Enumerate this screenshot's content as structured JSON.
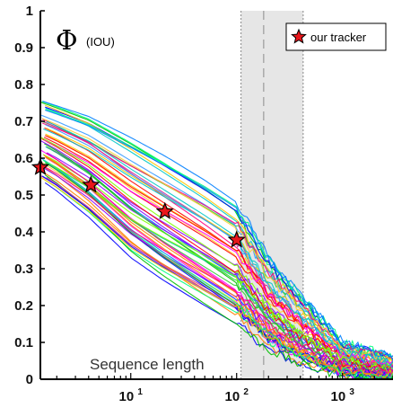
{
  "chart_data": {
    "type": "line",
    "title": "",
    "ylabel_symbol": "Φ",
    "ylabel_sub": "(IOU)",
    "xlabel": "Sequence length",
    "xscale": "log",
    "xlim": [
      1.4,
      3000
    ],
    "ylim": [
      0,
      1
    ],
    "y_ticks": [
      "0",
      "0.1",
      "0.2",
      "0.3",
      "0.4",
      "0.5",
      "0.6",
      "0.7",
      "0.8",
      "0.9",
      "1"
    ],
    "x_ticks": [
      {
        "base": "10",
        "exp": "1",
        "value": 10
      },
      {
        "base": "10",
        "exp": "2",
        "value": 100
      },
      {
        "base": "10",
        "exp": "3",
        "value": 1000
      }
    ],
    "shaded_region": [
      110,
      425
    ],
    "dashed_marker_x": 180,
    "legend": {
      "label": "our tracker",
      "marker": "red-star",
      "position": "top-right"
    },
    "highlight_series": {
      "name": "our tracker",
      "points": [
        {
          "x": 1.4,
          "y": 0.575
        },
        {
          "x": 4.2,
          "y": 0.527
        },
        {
          "x": 21,
          "y": 0.455
        },
        {
          "x": 100,
          "y": 0.378
        }
      ]
    },
    "series_band": {
      "count": 60,
      "description_free": true,
      "x_knots": [
        1.4,
        2,
        4,
        10,
        20,
        50,
        100,
        200,
        400,
        1000,
        3000
      ],
      "upper": [
        0.765,
        0.75,
        0.72,
        0.66,
        0.61,
        0.54,
        0.48,
        0.33,
        0.23,
        0.1,
        0.06
      ],
      "lower": [
        0.54,
        0.51,
        0.44,
        0.33,
        0.27,
        0.2,
        0.15,
        0.08,
        0.04,
        0.01,
        0.0
      ]
    }
  },
  "colors": {
    "star_fill": "#e8161b",
    "star_stroke": "#000000",
    "shade": "#e6e6e6",
    "curve_palette": [
      "#ff0000",
      "#00c000",
      "#0000ff",
      "#ff00ff",
      "#00c8c8",
      "#ffc800",
      "#8800ff",
      "#ff8000",
      "#00ff80",
      "#0080ff",
      "#80ff00",
      "#ff0080",
      "#33cc33",
      "#cc3399",
      "#3399ff",
      "#ffcc33"
    ]
  }
}
